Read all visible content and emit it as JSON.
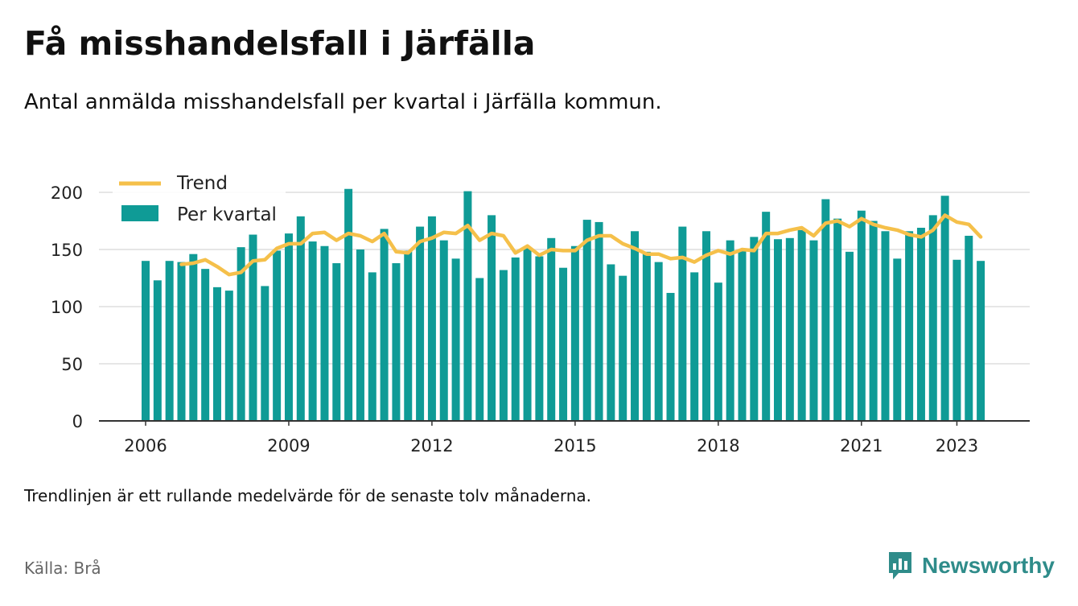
{
  "title": "Få misshandelsfall i Järfälla",
  "subtitle": "Antal anmälda misshandelsfall per kvartal i Järfälla kommun.",
  "footnote": "Trendlinjen är ett rullande medelvärde för de senaste tolv månaderna.",
  "source": "Källa: Brå",
  "brand": {
    "name": "Newsworthy",
    "icon": "newsworthy-logo-icon",
    "color": "#2f8c8a"
  },
  "colors": {
    "bars": "#0f9b96",
    "trend": "#f5c04a",
    "grid": "#dddddd",
    "axis": "#333333"
  },
  "chart_data": {
    "type": "bar",
    "title": "Få misshandelsfall i Järfälla",
    "xlabel": "",
    "ylabel": "",
    "ylim": [
      0,
      200
    ],
    "yticks": [
      0,
      50,
      100,
      150,
      200
    ],
    "xticks": [
      "2006",
      "2009",
      "2012",
      "2015",
      "2018",
      "2021",
      "2023"
    ],
    "grid": true,
    "legend_position": "top-left",
    "x_start": "2006 Q1",
    "x_end": "2023 Q3",
    "series": [
      {
        "name": "Per kvartal",
        "type": "bar",
        "values": [
          140,
          123,
          140,
          139,
          146,
          133,
          117,
          114,
          152,
          163,
          118,
          149,
          164,
          179,
          157,
          153,
          138,
          203,
          150,
          130,
          168,
          138,
          149,
          170,
          179,
          158,
          142,
          201,
          125,
          180,
          132,
          143,
          152,
          144,
          160,
          134,
          153,
          176,
          174,
          137,
          127,
          166,
          148,
          139,
          112,
          170,
          130,
          166,
          121,
          158,
          149,
          161,
          183,
          159,
          160,
          167,
          158,
          194,
          177,
          148,
          184,
          175,
          166,
          142,
          166,
          169,
          180,
          197,
          141,
          162,
          140
        ]
      },
      {
        "name": "Trend",
        "type": "line",
        "values": [
          null,
          null,
          null,
          137,
          138,
          141,
          135,
          128,
          130,
          140,
          141,
          151,
          155,
          155,
          164,
          165,
          158,
          164,
          162,
          157,
          164,
          148,
          147,
          157,
          160,
          165,
          164,
          171,
          158,
          164,
          162,
          147,
          153,
          145,
          150,
          149,
          149,
          158,
          162,
          162,
          155,
          151,
          146,
          146,
          142,
          143,
          139,
          145,
          149,
          146,
          150,
          149,
          164,
          164,
          167,
          169,
          162,
          173,
          175,
          170,
          177,
          172,
          169,
          167,
          163,
          161,
          167,
          180,
          174,
          172,
          161
        ]
      }
    ]
  }
}
